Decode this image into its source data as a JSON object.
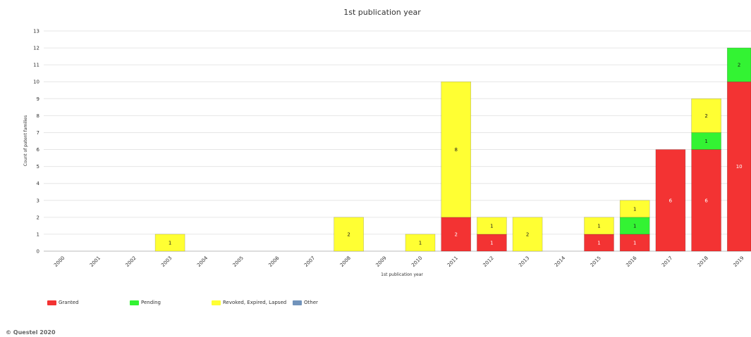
{
  "chart_data": {
    "type": "bar",
    "stacked": true,
    "title": "1st publication year",
    "xlabel": "1st publication year",
    "ylabel": "Count of patent families",
    "ylim": [
      0,
      13
    ],
    "yticks": [
      "0",
      "1",
      "2",
      "3",
      "4",
      "5",
      "6",
      "7",
      "8",
      "9",
      "10",
      "11",
      "12",
      "13"
    ],
    "grid": true,
    "categories": [
      "2000",
      "2001",
      "2002",
      "2003",
      "2004",
      "2005",
      "2006",
      "2007",
      "2008",
      "2009",
      "2010",
      "2011",
      "2012",
      "2013",
      "2014",
      "2015",
      "2016",
      "2017",
      "2018",
      "2019"
    ],
    "series": [
      {
        "name": "Granted",
        "color": "#f33333",
        "label_color": "#ffffff",
        "values": [
          0,
          0,
          0,
          0,
          0,
          0,
          0,
          0,
          0,
          0,
          0,
          2,
          1,
          0,
          0,
          1,
          1,
          6,
          6,
          10
        ]
      },
      {
        "name": "Pending",
        "color": "#33f333",
        "label_color": "#1a1a1a",
        "values": [
          0,
          0,
          0,
          0,
          0,
          0,
          0,
          0,
          0,
          0,
          0,
          0,
          0,
          0,
          0,
          0,
          1,
          0,
          1,
          2
        ]
      },
      {
        "name": "Revoked, Expired, Lapsed",
        "color": "#ffff33",
        "label_color": "#1a1a1a",
        "values": [
          0,
          0,
          0,
          1,
          0,
          0,
          0,
          0,
          2,
          0,
          1,
          8,
          1,
          2,
          0,
          1,
          1,
          0,
          2,
          0
        ]
      },
      {
        "name": "Other",
        "color": "#7193bb",
        "label_color": "#ffffff",
        "values": [
          0,
          0,
          0,
          0,
          0,
          0,
          0,
          0,
          0,
          0,
          0,
          0,
          0,
          0,
          0,
          0,
          0,
          0,
          0,
          0
        ]
      }
    ],
    "legend_position": "bottom-left"
  },
  "copyright": "© Questel 2020"
}
